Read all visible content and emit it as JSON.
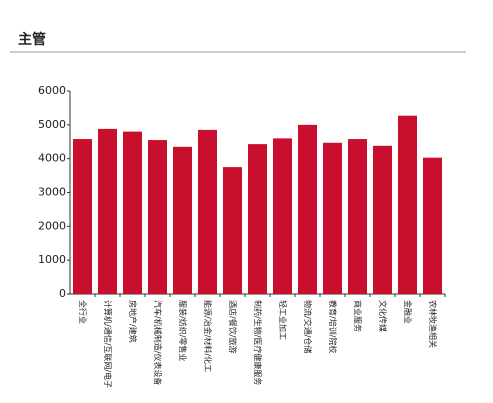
{
  "header": {
    "title": "主管"
  },
  "chart_data": {
    "type": "bar",
    "categories": [
      "全行业",
      "计算机/通信/互联网/电子",
      "房地产/建筑",
      "汽车/机械制造/仪表设备",
      "服装/纺织/零售业",
      "能源/冶金/材料/化工",
      "酒店/餐饮/旅游",
      "制药/生物/医疗健康服务",
      "轻工业加工",
      "物流/交通/仓储",
      "教育/培训/院校",
      "商业服务",
      "文化传媒",
      "金融业",
      "农林牧渔相关"
    ],
    "values": [
      4580,
      4880,
      4800,
      4550,
      4350,
      4850,
      3750,
      4430,
      4600,
      5000,
      4470,
      4580,
      4380,
      5270,
      4030
    ],
    "color": "#c8102e",
    "ylim": [
      0,
      6000
    ],
    "yticks": [
      0,
      1000,
      2000,
      3000,
      4000,
      5000,
      6000
    ],
    "grid": false
  }
}
